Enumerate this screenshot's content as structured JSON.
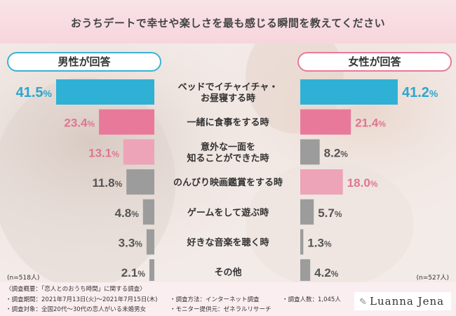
{
  "title": "おうちデートで幸せや楽しさを最も感じる瞬間を教えてください",
  "panels": {
    "male": {
      "label": "男性が回答",
      "n": "(n=518人)"
    },
    "female": {
      "label": "女性が回答",
      "n": "(n=527人)"
    }
  },
  "colors": {
    "male_top": "#2fb1d6",
    "pink_strong": "#e8799a",
    "pink_light": "#eda3b8",
    "gray": "#9c9c9c",
    "male_text": "#2aa7cf",
    "pink_text": "#e07591",
    "gray_text": "#555555"
  },
  "chart_data": {
    "type": "bar",
    "categories": [
      "ベッドでイチャイチャ・お昼寝する時",
      "一緒に食事をする時",
      "意外な一面を知ることができた時",
      "のんびり映画鑑賞をする時",
      "ゲームをして遊ぶ時",
      "好きな音楽を聴く時",
      "その他"
    ],
    "category_lines": [
      [
        "ベッドでイチャイチャ・",
        "お昼寝する時"
      ],
      [
        "一緒に食事をする時"
      ],
      [
        "意外な一面を",
        "知ることができた時"
      ],
      [
        "のんびり映画鑑賞をする時"
      ],
      [
        "ゲームをして遊ぶ時"
      ],
      [
        "好きな音楽を聴く時"
      ],
      [
        "その他"
      ]
    ],
    "series": [
      {
        "name": "男性が回答",
        "values": [
          41.5,
          23.4,
          13.1,
          11.8,
          4.8,
          3.3,
          2.1
        ],
        "labels": [
          "41.5%",
          "23.4%",
          "13.1%",
          "11.8%",
          "4.8%",
          "3.3%",
          "2.1%"
        ],
        "color_keys": [
          "male_top",
          "pink_strong",
          "pink_light",
          "gray",
          "gray",
          "gray",
          "gray"
        ]
      },
      {
        "name": "女性が回答",
        "values": [
          41.2,
          21.4,
          8.2,
          18.0,
          5.7,
          1.3,
          4.2
        ],
        "labels": [
          "41.2%",
          "21.4%",
          "8.2%",
          "18.0%",
          "5.7%",
          "1.3%",
          "4.2%"
        ],
        "color_keys": [
          "male_top",
          "pink_strong",
          "gray",
          "pink_light",
          "gray",
          "gray",
          "gray"
        ]
      }
    ],
    "xlim": [
      0,
      41.5
    ]
  },
  "footer": {
    "overview": "〈調査概要：「恋人とのおうち時間」に関する調査〉",
    "period": "・調査期間：2021年7月13日(火)〜2021年7月15日(木)",
    "target": "・調査対象：全国20代〜30代の恋人がいる未婚男女",
    "method": "・調査方法：インターネット調査",
    "provider": "・モニター提供元：ゼネラルリサーチ",
    "count": "・調査人数：1,045人",
    "logo": "Luanna Jena"
  }
}
